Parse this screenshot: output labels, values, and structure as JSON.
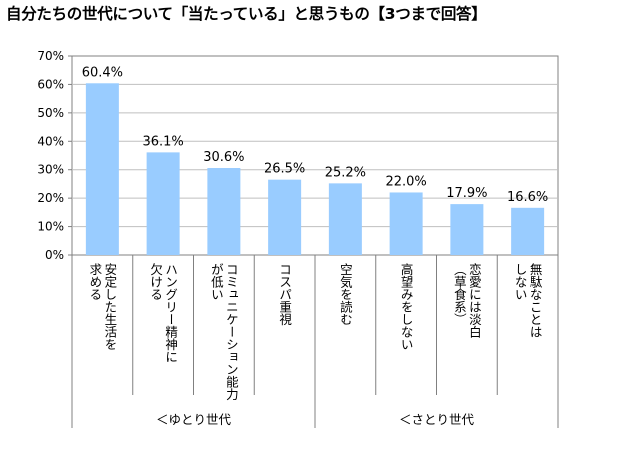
{
  "title": "自分たちの世代について「当たっている」と思うもの【3つまで回答】",
  "chart_data": {
    "type": "bar",
    "categories": [
      [
        "安定した生活を",
        "求める"
      ],
      [
        "ハングリー精神に",
        "欠ける"
      ],
      [
        "コミュニケーション能力",
        "が低い"
      ],
      [
        "コスパ重視"
      ],
      [
        "空気を読む"
      ],
      [
        "高望みをしない"
      ],
      [
        "恋愛には淡白",
        "（草食系）"
      ],
      [
        "無駄なことは",
        "しない"
      ]
    ],
    "values": [
      60.4,
      36.1,
      30.6,
      26.5,
      25.2,
      22.0,
      17.9,
      16.6
    ],
    "value_labels": [
      "60.4%",
      "36.1%",
      "30.6%",
      "26.5%",
      "25.2%",
      "22.0%",
      "17.9%",
      "16.6%"
    ],
    "yticks": [
      "0%",
      "10%",
      "20%",
      "30%",
      "40%",
      "50%",
      "60%",
      "70%"
    ],
    "ylim": [
      0,
      70
    ],
    "grid": true,
    "groups": [
      {
        "label": "＜ゆとり世代",
        "categories": [
          0,
          1,
          2,
          3
        ]
      },
      {
        "label": "＜さとり世代",
        "categories": [
          4,
          5,
          6,
          7
        ]
      }
    ],
    "bar_color": "#99ccff"
  }
}
